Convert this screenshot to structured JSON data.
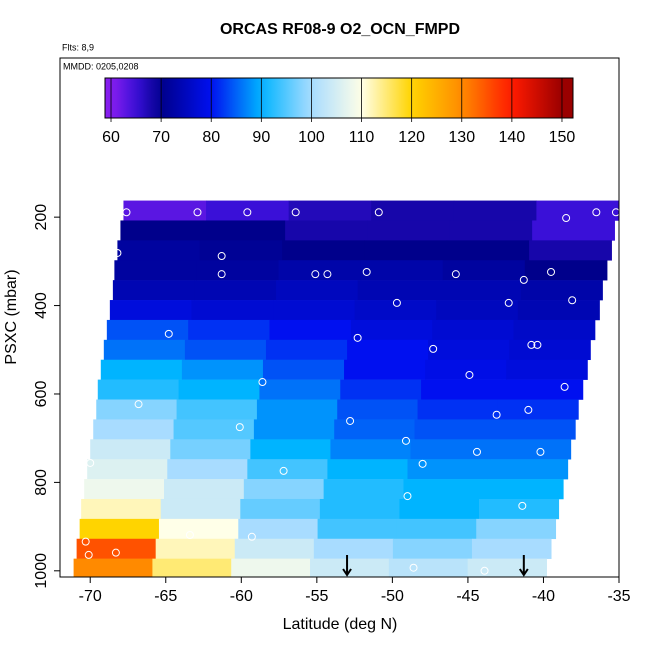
{
  "chart_data": {
    "type": "heatmap",
    "title": "ORCAS RF08-9 O2_OCN_FMPD",
    "flights": "Flts: 8,9",
    "dates": "MMDD: 0205,0208",
    "x_label": "Latitude (deg N)",
    "y_label": "PSXC (mbar)",
    "xlim": [
      -72,
      -35
    ],
    "ylim": [
      1014,
      -160
    ],
    "xticks": [
      -70,
      -65,
      -60,
      -55,
      -50,
      -45,
      -40,
      -35
    ],
    "yticks": [
      200,
      400,
      600,
      800,
      1000
    ],
    "zlim": [
      58.8,
      152.2
    ],
    "zticks": [
      60,
      70,
      80,
      90,
      100,
      110,
      120,
      130,
      140,
      150
    ],
    "colorscale": [
      [
        60,
        "#8a1ef0"
      ],
      [
        65,
        "#3a10d8"
      ],
      [
        70,
        "#00008b"
      ],
      [
        80,
        "#0010f0"
      ],
      [
        90,
        "#00b4ff"
      ],
      [
        100,
        "#a8dcff"
      ],
      [
        110,
        "#ffffe8"
      ],
      [
        120,
        "#ffd400"
      ],
      [
        130,
        "#ff8a00"
      ],
      [
        140,
        "#ff1a00"
      ],
      [
        150,
        "#9a0000"
      ]
    ],
    "bands": [
      {
        "pressure": 185,
        "half_height": 22.5,
        "lat": [
          -67.8,
          -35.0
        ],
        "values": [
          63,
          65,
          67,
          68,
          68,
          65
        ]
      },
      {
        "pressure": 230,
        "half_height": 22.5,
        "lat": [
          -68.0,
          -35.3
        ],
        "values": [
          70,
          70,
          68,
          68,
          68,
          65
        ]
      },
      {
        "pressure": 275,
        "half_height": 22.5,
        "lat": [
          -68.2,
          -35.5
        ],
        "values": [
          72,
          71,
          70,
          70,
          70,
          68
        ]
      },
      {
        "pressure": 320,
        "half_height": 22.5,
        "lat": [
          -68.4,
          -35.8
        ],
        "values": [
          72,
          72,
          73,
          73,
          72,
          70
        ]
      },
      {
        "pressure": 365,
        "half_height": 22.5,
        "lat": [
          -68.5,
          -36.1
        ],
        "values": [
          74,
          74,
          75,
          74,
          74,
          73
        ]
      },
      {
        "pressure": 410,
        "half_height": 22.5,
        "lat": [
          -68.7,
          -36.3
        ],
        "values": [
          78,
          77,
          77,
          76,
          75,
          74
        ]
      },
      {
        "pressure": 455,
        "half_height": 22.5,
        "lat": [
          -68.9,
          -36.6
        ],
        "values": [
          84,
          82,
          80,
          78,
          77,
          76
        ]
      },
      {
        "pressure": 500,
        "half_height": 22.5,
        "lat": [
          -69.1,
          -36.9
        ],
        "values": [
          86,
          84,
          82,
          80,
          78,
          77
        ]
      },
      {
        "pressure": 545,
        "half_height": 22.5,
        "lat": [
          -69.3,
          -37.1
        ],
        "values": [
          90,
          88,
          84,
          80,
          79,
          78
        ]
      },
      {
        "pressure": 590,
        "half_height": 22.5,
        "lat": [
          -69.5,
          -37.4
        ],
        "values": [
          92,
          90,
          86,
          82,
          80,
          80
        ]
      },
      {
        "pressure": 635,
        "half_height": 22.5,
        "lat": [
          -69.6,
          -37.7
        ],
        "values": [
          98,
          94,
          88,
          84,
          82,
          82
        ]
      },
      {
        "pressure": 680,
        "half_height": 22.5,
        "lat": [
          -69.8,
          -37.9
        ],
        "values": [
          100,
          95,
          88,
          85,
          84,
          84
        ]
      },
      {
        "pressure": 725,
        "half_height": 22.5,
        "lat": [
          -70.0,
          -38.2
        ],
        "values": [
          104,
          97,
          90,
          87,
          86,
          86
        ]
      },
      {
        "pressure": 770,
        "half_height": 22.5,
        "lat": [
          -70.2,
          -38.4
        ],
        "values": [
          106,
          100,
          94,
          90,
          88,
          88
        ]
      },
      {
        "pressure": 815,
        "half_height": 22.5,
        "lat": [
          -70.4,
          -38.7
        ],
        "values": [
          108,
          104,
          98,
          92,
          90,
          90
        ]
      },
      {
        "pressure": 860,
        "half_height": 22.5,
        "lat": [
          -70.6,
          -39.0
        ],
        "values": [
          112,
          104,
          96,
          92,
          90,
          92
        ]
      },
      {
        "pressure": 905,
        "half_height": 22.5,
        "lat": [
          -70.7,
          -39.2
        ],
        "values": [
          120,
          110,
          100,
          94,
          94,
          98
        ]
      },
      {
        "pressure": 950,
        "half_height": 22.5,
        "lat": [
          -70.9,
          -39.5
        ],
        "values": [
          135,
          112,
          104,
          100,
          98,
          100
        ]
      },
      {
        "pressure": 995,
        "half_height": 22.5,
        "lat": [
          -71.1,
          -39.8
        ],
        "values": [
          130,
          115,
          108,
          104,
          102,
          104
        ]
      }
    ],
    "points": {
      "lat": [
        -67.6,
        -62.9,
        -59.6,
        -56.4,
        -50.9,
        -38.5,
        -36.5,
        -35.2,
        -68.2,
        -61.3,
        -61.3,
        -55.1,
        -54.3,
        -51.7,
        -45.8,
        -41.3,
        -39.5,
        -69.4,
        -49.7,
        -42.3,
        -38.1,
        -64.8,
        -52.3,
        -70.1,
        -47.3,
        -40.8,
        -40.4,
        -70.3,
        -58.6,
        -44.9,
        -38.6,
        -66.8,
        -60.1,
        -52.8,
        -43.1,
        -41.0,
        -70.7,
        -49.1,
        -57.2,
        -48.0,
        -44.4,
        -40.2,
        -70.0,
        -49.0,
        -41.4,
        -63.4,
        -59.3,
        -70.3,
        -68.3,
        -70.1,
        -71.3,
        -48.6,
        -43.9
      ],
      "pressure": [
        189,
        189,
        189,
        189,
        189,
        202,
        189,
        189,
        281,
        288,
        329,
        329,
        329,
        324,
        329,
        342,
        324,
        376,
        394,
        394,
        388,
        464,
        473,
        471,
        498,
        489,
        489,
        573,
        573,
        557,
        584,
        623,
        675,
        661,
        647,
        636,
        690,
        706,
        774,
        758,
        731,
        731,
        756,
        831,
        853,
        919,
        923,
        934,
        959,
        964,
        950,
        993,
        1000
      ]
    },
    "arrows_x": [
      -53,
      -41.3
    ]
  }
}
